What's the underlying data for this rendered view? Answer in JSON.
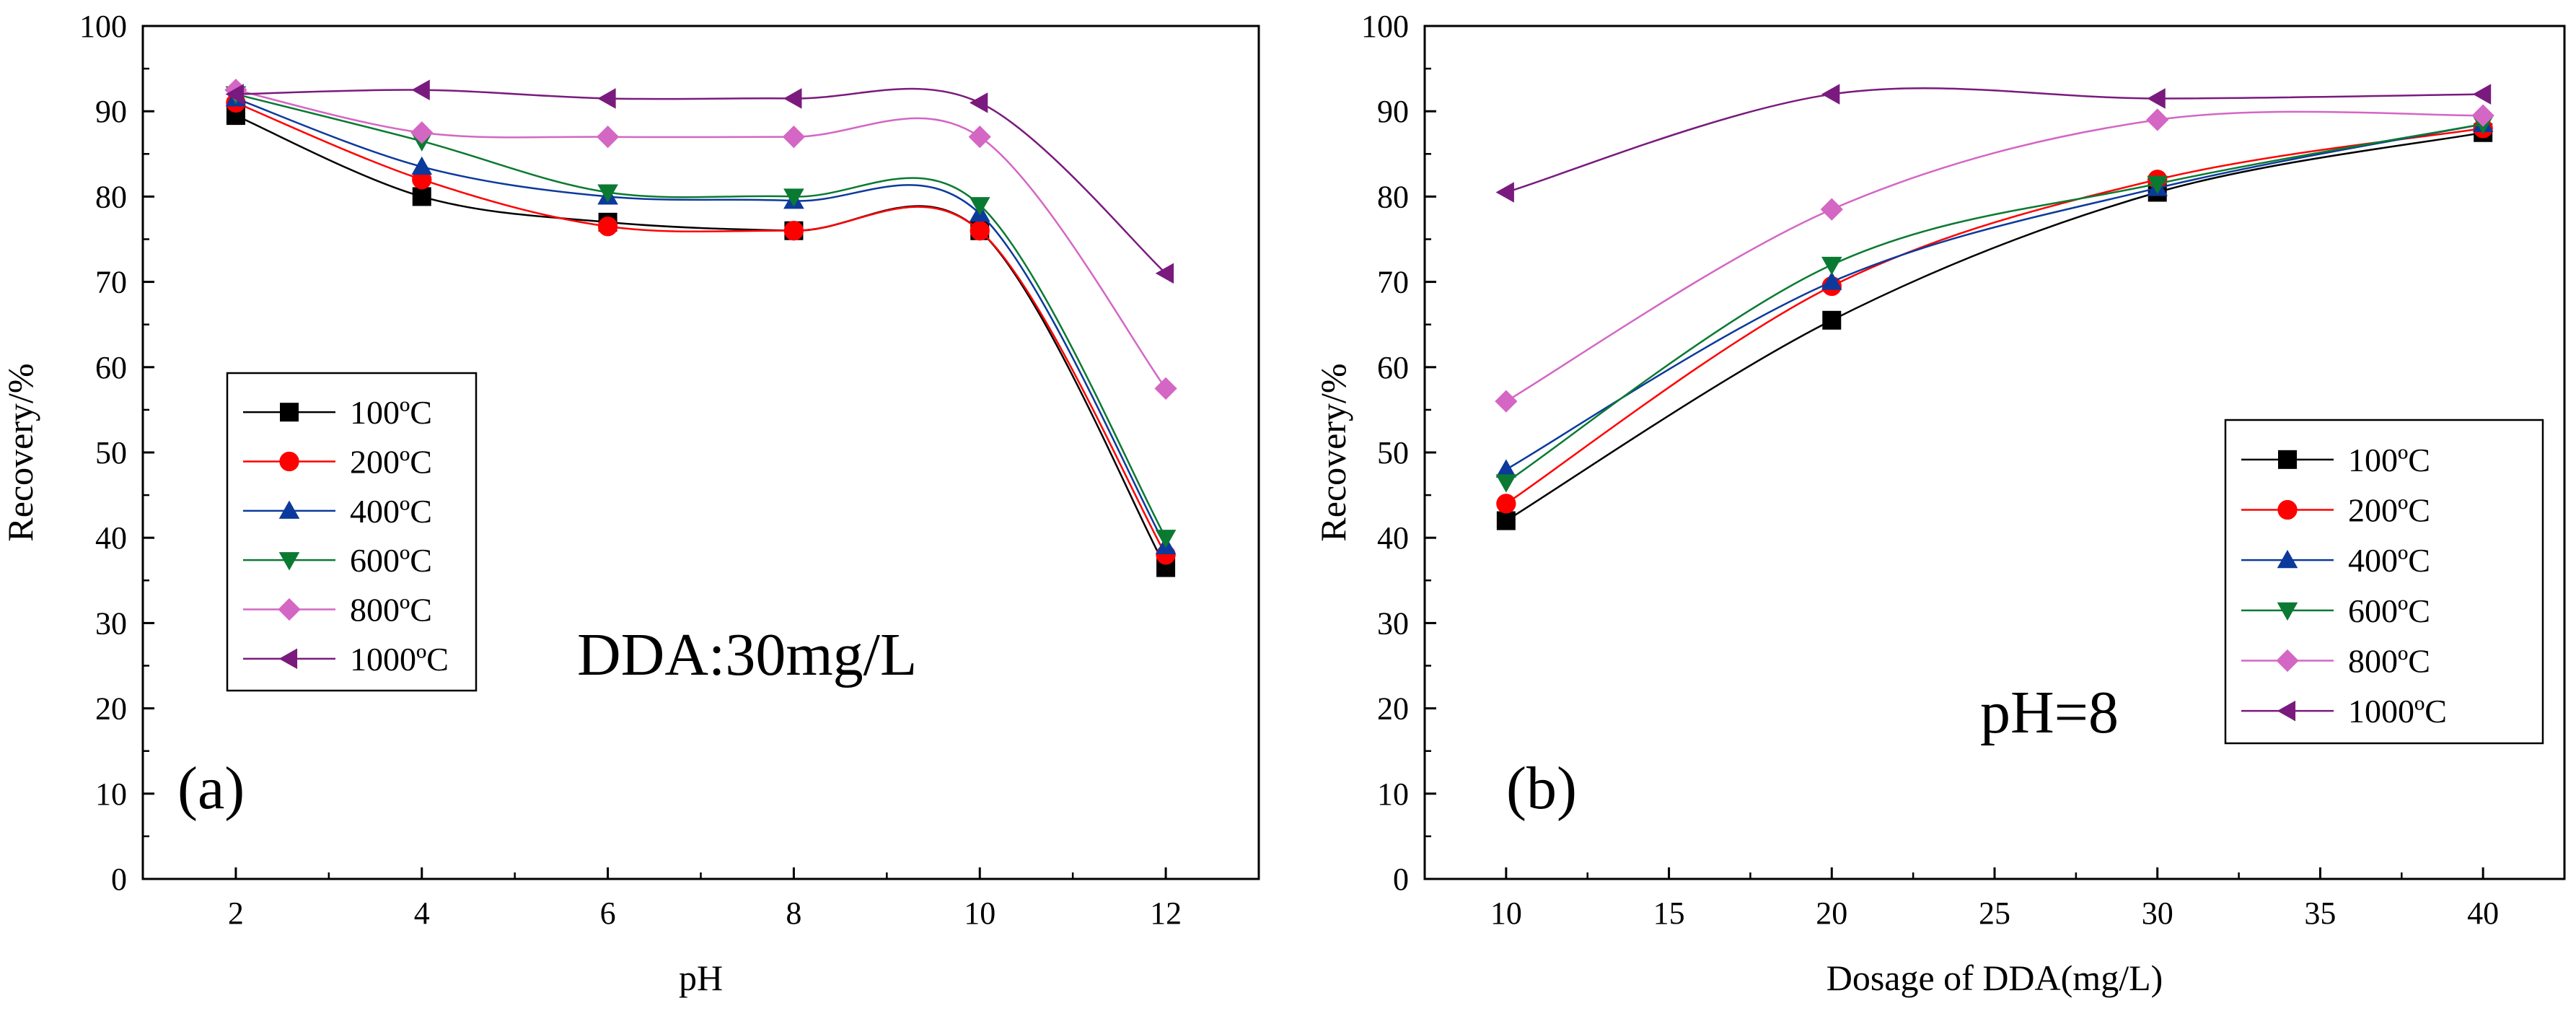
{
  "chart_data": [
    {
      "type": "line",
      "panel_label": "(a)",
      "title": "",
      "annotation": "DDA:30mg/L",
      "xlabel": "pH",
      "ylabel": "Recovery/%",
      "xlim": [
        1,
        13
      ],
      "ylim": [
        0,
        100
      ],
      "xticks": [
        2,
        4,
        6,
        8,
        10,
        12
      ],
      "yticks": [
        0,
        10,
        20,
        30,
        40,
        50,
        60,
        70,
        80,
        90,
        100
      ],
      "legend_position": "middle-left",
      "x": [
        2,
        4,
        6,
        8,
        10,
        12
      ],
      "series": [
        {
          "name": "100ºC",
          "values": [
            89.5,
            80,
            77,
            76,
            76,
            36.5
          ],
          "color": "#000000",
          "marker": "square"
        },
        {
          "name": "200ºC",
          "values": [
            91,
            82,
            76.5,
            76,
            76,
            38
          ],
          "color": "#ff0000",
          "marker": "circle"
        },
        {
          "name": "400ºC",
          "values": [
            91.5,
            83.5,
            80,
            79.5,
            78,
            39
          ],
          "color": "#0b3a9c",
          "marker": "triangle-up"
        },
        {
          "name": "600ºC",
          "values": [
            92,
            86.5,
            80.5,
            80,
            79,
            40
          ],
          "color": "#0a7a32",
          "marker": "triangle-down"
        },
        {
          "name": "800ºC",
          "values": [
            92.5,
            87.5,
            87,
            87,
            87,
            57.5
          ],
          "color": "#d466c4",
          "marker": "diamond"
        },
        {
          "name": "1000ºC",
          "values": [
            92,
            92.5,
            91.5,
            91.5,
            91,
            71
          ],
          "color": "#7a1a7e",
          "marker": "triangle-left"
        }
      ]
    },
    {
      "type": "line",
      "panel_label": "(b)",
      "title": "",
      "annotation": "pH=8",
      "xlabel": "Dosage of DDA(mg/L)",
      "ylabel": "Recovery/%",
      "xlim": [
        7.5,
        42.5
      ],
      "ylim": [
        0,
        100
      ],
      "xticks": [
        10,
        15,
        20,
        25,
        30,
        35,
        40
      ],
      "yticks": [
        0,
        10,
        20,
        30,
        40,
        50,
        60,
        70,
        80,
        90,
        100
      ],
      "legend_position": "middle-right",
      "x": [
        10,
        20,
        30,
        40
      ],
      "series": [
        {
          "name": "100ºC",
          "values": [
            42,
            65.5,
            80.5,
            87.5
          ],
          "color": "#000000",
          "marker": "square"
        },
        {
          "name": "200ºC",
          "values": [
            44,
            69.5,
            82,
            88
          ],
          "color": "#ff0000",
          "marker": "circle"
        },
        {
          "name": "400ºC",
          "values": [
            48,
            70,
            81,
            88.5
          ],
          "color": "#0b3a9c",
          "marker": "triangle-up"
        },
        {
          "name": "600ºC",
          "values": [
            46.5,
            72,
            81.5,
            88.5
          ],
          "color": "#0a7a32",
          "marker": "triangle-down"
        },
        {
          "name": "800ºC",
          "values": [
            56,
            78.5,
            89,
            89.5
          ],
          "color": "#d466c4",
          "marker": "diamond"
        },
        {
          "name": "1000ºC",
          "values": [
            80.5,
            92,
            91.5,
            92
          ],
          "color": "#7a1a7e",
          "marker": "triangle-left"
        }
      ]
    }
  ]
}
